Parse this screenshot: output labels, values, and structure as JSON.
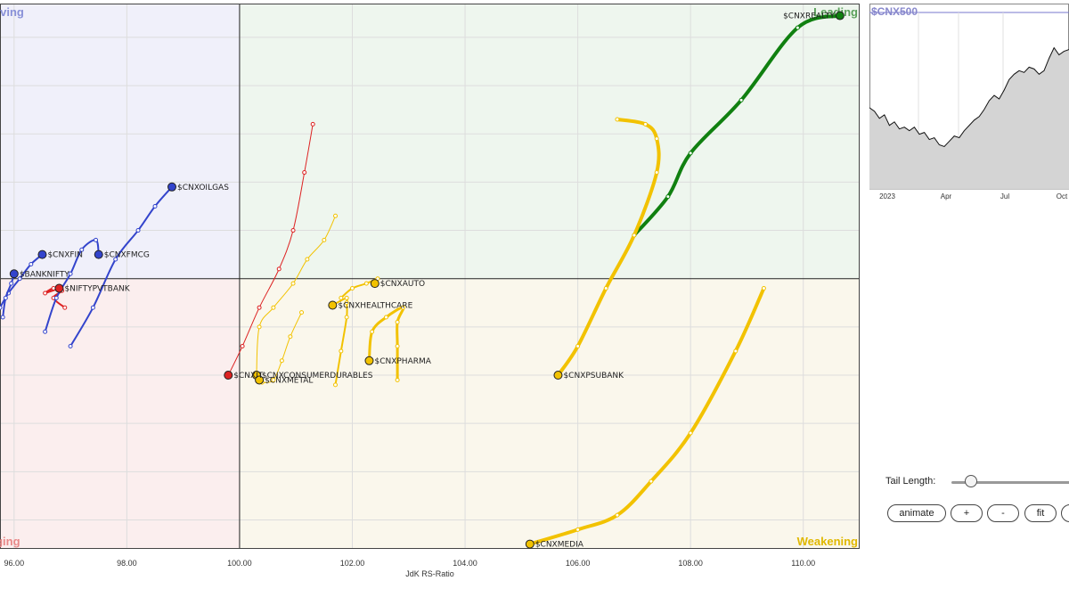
{
  "chart_data": {
    "type": "scatter",
    "xlabel": "JdK RS-Ratio",
    "ylabel": "",
    "xlim": [
      95.75,
      111.0
    ],
    "ylim": [
      94.4,
      105.7
    ],
    "x_ticks": [
      "96.00",
      "98.00",
      "100.00",
      "102.00",
      "104.00",
      "106.00",
      "108.00",
      "110.00"
    ],
    "x_tick_values": [
      96,
      98,
      100,
      102,
      104,
      106,
      108,
      110
    ],
    "gridlines": true,
    "center": [
      100,
      100
    ],
    "quadrants": {
      "leading": {
        "label": "Leading",
        "color": "#5aa05a",
        "fill": "#eef6ee",
        "corner": "top-right"
      },
      "weakening": {
        "label": "Weakening",
        "color": "#e0b800",
        "fill": "#faf7ec",
        "corner": "bottom-right"
      },
      "lagging": {
        "label": "Lagging",
        "color": "#e88888",
        "fill": "#fbeeee",
        "corner": "bottom-left"
      },
      "improving": {
        "label": "Improving",
        "color": "#8890d8",
        "fill": "#f0f0fa",
        "corner": "top-left"
      }
    },
    "series": [
      {
        "name": "$CNXREALTY",
        "color": "#108010",
        "width": 4,
        "points": [
          [
            107.0,
            100.9
          ],
          [
            107.6,
            101.7
          ],
          [
            108.0,
            102.6
          ],
          [
            108.9,
            103.7
          ],
          [
            109.9,
            105.2
          ],
          [
            110.65,
            105.45
          ]
        ]
      },
      {
        "name": "$CNXPSUBANK",
        "color": "#f2c200",
        "width": 4,
        "points": [
          [
            106.7,
            103.3
          ],
          [
            107.2,
            103.2
          ],
          [
            107.4,
            102.9
          ],
          [
            107.4,
            102.2
          ],
          [
            107.0,
            100.9
          ],
          [
            106.5,
            99.8
          ],
          [
            106.0,
            98.6
          ],
          [
            105.65,
            98.0
          ]
        ]
      },
      {
        "name": "$CNXMEDIA",
        "color": "#f2c200",
        "width": 4,
        "points": [
          [
            109.3,
            99.8
          ],
          [
            108.8,
            98.5
          ],
          [
            108.0,
            96.8
          ],
          [
            107.3,
            95.8
          ],
          [
            106.7,
            95.1
          ],
          [
            106.0,
            94.8
          ],
          [
            105.15,
            94.5
          ]
        ]
      },
      {
        "name": "$CNXPHARMA",
        "color": "#f2c200",
        "width": 3,
        "points": [
          [
            102.8,
            97.9
          ],
          [
            102.8,
            98.6
          ],
          [
            102.8,
            99.1
          ],
          [
            102.9,
            99.4
          ],
          [
            102.6,
            99.2
          ],
          [
            102.35,
            98.9
          ],
          [
            102.3,
            98.3
          ]
        ]
      },
      {
        "name": "$CNXAUTO",
        "color": "#f2c200",
        "width": 2,
        "points": [
          [
            101.8,
            99.6
          ],
          [
            102.0,
            99.8
          ],
          [
            102.25,
            99.9
          ],
          [
            102.45,
            100.0
          ],
          [
            102.4,
            99.9
          ]
        ]
      },
      {
        "name": "$CNXHEALTHCARE",
        "color": "#f2c200",
        "width": 2,
        "points": [
          [
            101.7,
            97.8
          ],
          [
            101.8,
            98.5
          ],
          [
            101.9,
            99.2
          ],
          [
            101.9,
            99.5
          ],
          [
            101.9,
            99.6
          ],
          [
            101.65,
            99.45
          ]
        ]
      },
      {
        "name": "$CNXCONSUMERDURABLES",
        "color": "#f2c200",
        "width": 1,
        "points": [
          [
            101.7,
            101.3
          ],
          [
            101.5,
            100.8
          ],
          [
            101.2,
            100.4
          ],
          [
            100.95,
            99.9
          ],
          [
            100.6,
            99.4
          ],
          [
            100.35,
            99.0
          ],
          [
            100.3,
            98.0
          ]
        ]
      },
      {
        "name": "$CNXMETAL",
        "color": "#f2c200",
        "width": 1,
        "points": [
          [
            101.1,
            99.3
          ],
          [
            100.9,
            98.8
          ],
          [
            100.75,
            98.3
          ],
          [
            100.6,
            97.9
          ],
          [
            100.4,
            97.85
          ],
          [
            100.35,
            97.9
          ]
        ]
      },
      {
        "name": "$CNXIT",
        "color": "#dd2222",
        "width": 1,
        "points": [
          [
            101.3,
            103.2
          ],
          [
            101.15,
            102.2
          ],
          [
            100.95,
            101.0
          ],
          [
            100.7,
            100.2
          ],
          [
            100.35,
            99.4
          ],
          [
            100.05,
            98.6
          ],
          [
            99.8,
            98.0
          ]
        ]
      },
      {
        "name": "$NIFTYPVTBANK",
        "color": "#dd2222",
        "width": 2,
        "points": [
          [
            96.9,
            99.4
          ],
          [
            96.7,
            99.6
          ],
          [
            96.85,
            99.75
          ],
          [
            96.7,
            99.8
          ],
          [
            96.55,
            99.7
          ],
          [
            96.8,
            99.8
          ]
        ]
      },
      {
        "name": "$CNXOILGAS",
        "color": "#3344cc",
        "width": 2,
        "points": [
          [
            97.0,
            98.6
          ],
          [
            97.4,
            99.4
          ],
          [
            97.8,
            100.4
          ],
          [
            98.2,
            101.0
          ],
          [
            98.5,
            101.5
          ],
          [
            98.8,
            101.9
          ]
        ]
      },
      {
        "name": "$CNXFMCG",
        "color": "#3344cc",
        "width": 2,
        "points": [
          [
            96.55,
            98.9
          ],
          [
            96.75,
            99.6
          ],
          [
            97.0,
            100.1
          ],
          [
            97.2,
            100.6
          ],
          [
            97.45,
            100.8
          ],
          [
            97.5,
            100.5
          ]
        ]
      },
      {
        "name": "$CNXFIN",
        "color": "#3344cc",
        "width": 2,
        "points": [
          [
            95.75,
            99.4
          ],
          [
            95.9,
            99.7
          ],
          [
            96.1,
            100.0
          ],
          [
            96.3,
            100.3
          ],
          [
            96.5,
            100.5
          ]
        ]
      },
      {
        "name": "$BANKNIFTY",
        "color": "#3344cc",
        "width": 2,
        "points": [
          [
            95.8,
            99.2
          ],
          [
            95.85,
            99.6
          ],
          [
            95.95,
            99.9
          ],
          [
            96.0,
            100.1
          ]
        ]
      }
    ],
    "labels": [
      {
        "series": "$CNXREALTY",
        "text": "$CNXREALTY",
        "anchor": "end"
      },
      {
        "series": "$CNXPSUBANK",
        "text": "$CNXPSUBANK",
        "anchor": "start"
      },
      {
        "series": "$CNXMEDIA",
        "text": "$CNXMEDIA",
        "anchor": "start"
      },
      {
        "series": "$CNXPHARMA",
        "text": "$CNXPHARMA",
        "anchor": "start"
      },
      {
        "series": "$CNXAUTO",
        "text": "$CNXAUTO",
        "anchor": "start"
      },
      {
        "series": "$CNXHEALTHCARE",
        "text": "$CNXHEALTHCARE",
        "anchor": "start"
      },
      {
        "series": "$CNXCONSUMERDURABLES",
        "text": "$CNXCONSUMERDURABLES",
        "anchor": "start"
      },
      {
        "series": "$CNXMETAL",
        "text": "$CNXMETAL",
        "anchor": "start"
      },
      {
        "series": "$CNXIT",
        "text": "$CNXIT",
        "anchor": "start"
      },
      {
        "series": "$NIFTYPVTBANK",
        "text": "$NIFTYPVTBANK",
        "anchor": "start"
      },
      {
        "series": "$CNXOILGAS",
        "text": "$CNXOILGAS",
        "anchor": "start"
      },
      {
        "series": "$CNXFMCG",
        "text": "$CNXFMCG",
        "anchor": "start"
      },
      {
        "series": "$CNXFIN",
        "text": "$CNXFIN",
        "anchor": "start"
      },
      {
        "series": "$BANKNIFTY",
        "text": "$BANKNIFTY",
        "anchor": "start"
      }
    ]
  },
  "mini_chart": {
    "title": "$CNX500",
    "x_labels": [
      "2023",
      "Apr",
      "Jul",
      "Oct"
    ],
    "values": [
      46,
      44,
      40,
      42,
      36,
      38,
      34,
      35,
      33,
      35,
      31,
      32,
      28,
      29,
      25,
      24,
      27,
      30,
      29,
      33,
      36,
      39,
      41,
      45,
      50,
      53,
      51,
      56,
      62,
      65,
      67,
      66,
      69,
      68,
      65,
      67,
      74,
      80,
      76,
      78,
      79
    ]
  },
  "controls": {
    "tail_length_label": "Tail Length:",
    "tail_length_value": 0.12,
    "buttons": [
      "animate",
      "+",
      "-",
      "fit",
      ""
    ]
  }
}
